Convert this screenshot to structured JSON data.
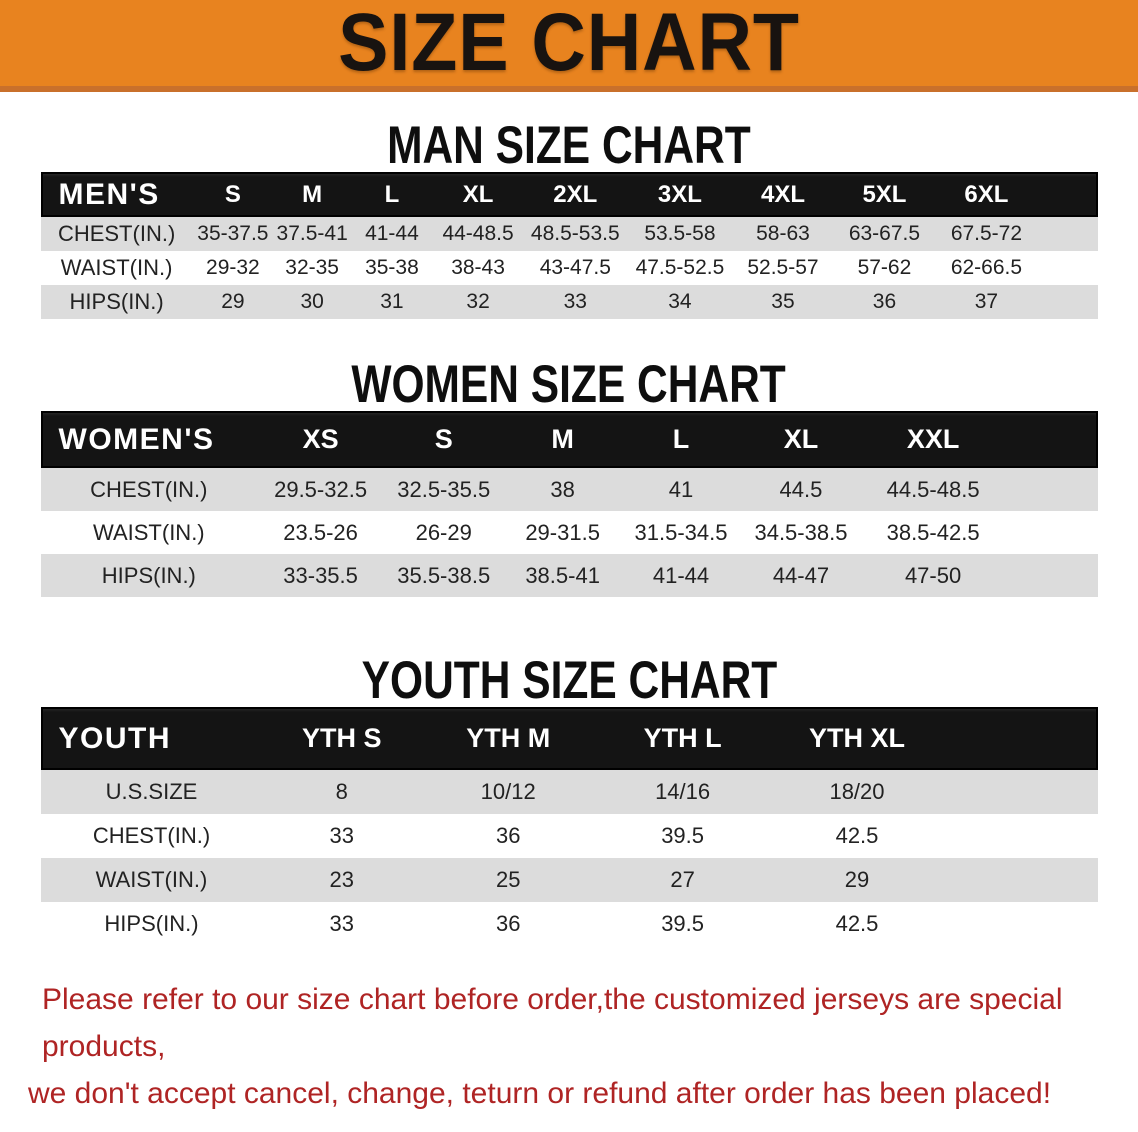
{
  "banner": {
    "title": "SIZE CHART",
    "bg_color": "#E8831F",
    "edge_color": "#C9702B"
  },
  "sections": [
    {
      "heading": "MAN SIZE CHART",
      "table": {
        "label": "MEN'S",
        "columns": [
          "S",
          "M",
          "L",
          "XL",
          "2XL",
          "3XL",
          "4XL",
          "5XL",
          "6XL"
        ],
        "rows": [
          {
            "label": "CHEST(IN.)",
            "values": [
              "35-37.5",
              "37.5-41",
              "41-44",
              "44-48.5",
              "48.5-53.5",
              "53.5-58",
              "58-63",
              "63-67.5",
              "67.5-72"
            ]
          },
          {
            "label": "WAIST(IN.)",
            "values": [
              "29-32",
              "32-35",
              "35-38",
              "38-43",
              "43-47.5",
              "47.5-52.5",
              "52.5-57",
              "57-62",
              "62-66.5"
            ]
          },
          {
            "label": "HIPS(IN.)",
            "values": [
              "29",
              "30",
              "31",
              "32",
              "33",
              "34",
              "35",
              "36",
              "37"
            ]
          }
        ]
      }
    },
    {
      "heading": "WOMEN SIZE CHART",
      "table": {
        "label": "WOMEN'S",
        "columns": [
          "XS",
          "S",
          "M",
          "L",
          "XL",
          "XXL"
        ],
        "rows": [
          {
            "label": "CHEST(IN.)",
            "values": [
              "29.5-32.5",
              "32.5-35.5",
              "38",
              "41",
              "44.5",
              "44.5-48.5"
            ]
          },
          {
            "label": "WAIST(IN.)",
            "values": [
              "23.5-26",
              "26-29",
              "29-31.5",
              "31.5-34.5",
              "34.5-38.5",
              "38.5-42.5"
            ]
          },
          {
            "label": "HIPS(IN.)",
            "values": [
              "33-35.5",
              "35.5-38.5",
              "38.5-41",
              "41-44",
              "44-47",
              "47-50"
            ]
          }
        ]
      }
    },
    {
      "heading": "YOUTH SIZE CHART",
      "table": {
        "label": "YOUTH",
        "columns": [
          "YTH S",
          "YTH M",
          "YTH L",
          "YTH XL"
        ],
        "rows": [
          {
            "label": "U.S.SIZE",
            "values": [
              "8",
              "10/12",
              "14/16",
              "18/20"
            ]
          },
          {
            "label": "CHEST(IN.)",
            "values": [
              "33",
              "36",
              "39.5",
              "42.5"
            ]
          },
          {
            "label": "WAIST(IN.)",
            "values": [
              "23",
              "25",
              "27",
              "29"
            ]
          },
          {
            "label": "HIPS(IN.)",
            "values": [
              "33",
              "36",
              "39.5",
              "42.5"
            ]
          }
        ]
      }
    }
  ],
  "disclaimer": {
    "color": "#AF2424",
    "lines": [
      "Please refer to our size chart before order,the customized jerseys are special products,",
      "we don't accept cancel, change, teturn or refund after order has been placed!"
    ]
  }
}
